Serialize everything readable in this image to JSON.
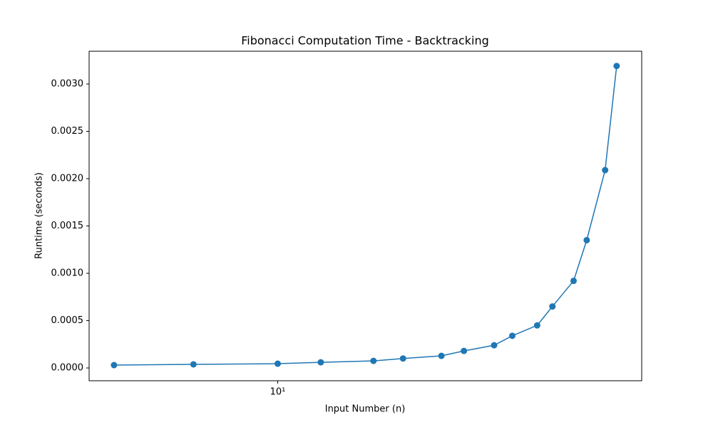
{
  "chart_data": {
    "type": "line",
    "title": "Fibonacci Computation Time - Backtracking",
    "xlabel": "Input Number (n)",
    "ylabel": "Runtime (seconds)",
    "xscale": "log",
    "x": [
      5,
      7,
      10,
      12,
      15,
      17,
      20,
      22,
      25,
      27,
      30,
      32,
      35,
      37,
      40,
      42
    ],
    "series": [
      {
        "name": "Backtracking",
        "color": "#1f77b4",
        "values": [
          3e-05,
          3.8e-05,
          4.5e-05,
          6e-05,
          7.5e-05,
          0.0001,
          0.000128,
          0.00018,
          0.00024,
          0.00034,
          0.00045,
          0.00065,
          0.00092,
          0.00135,
          0.00209,
          0.00319
        ]
      }
    ],
    "xlim": [
      4.5,
      46.7
    ],
    "ylim": [
      -0.000135,
      0.003346
    ],
    "xticks": [
      {
        "value": 10,
        "label": "10¹"
      }
    ],
    "yticks": [
      {
        "value": 0,
        "label": "0.0000"
      },
      {
        "value": 0.0005,
        "label": "0.0005"
      },
      {
        "value": 0.001,
        "label": "0.0010"
      },
      {
        "value": 0.0015,
        "label": "0.0015"
      },
      {
        "value": 0.002,
        "label": "0.0020"
      },
      {
        "value": 0.0025,
        "label": "0.0025"
      },
      {
        "value": 0.003,
        "label": "0.0030"
      }
    ]
  }
}
